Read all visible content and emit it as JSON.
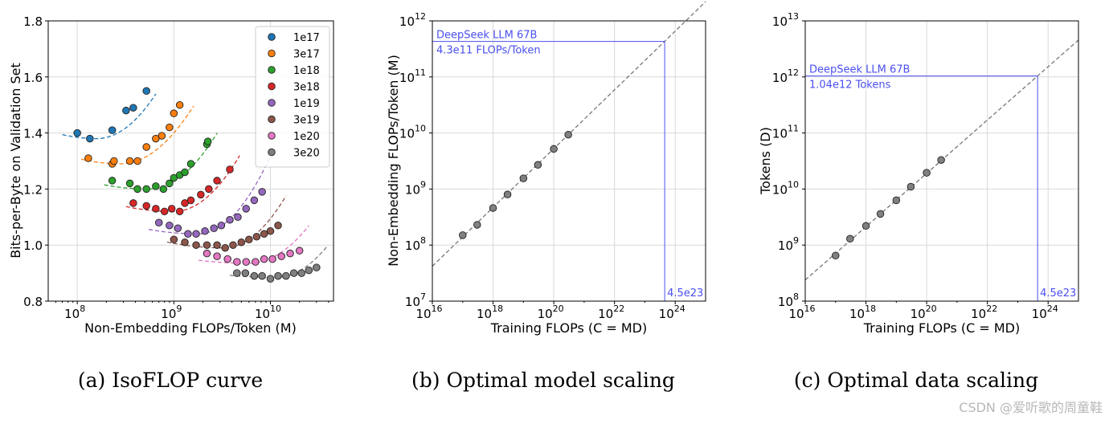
{
  "chart_data": [
    {
      "type": "scatter",
      "title": "",
      "caption": "(a)  IsoFLOP curve",
      "xlabel": "Non-Embedding FLOPs/Token (M)",
      "ylabel": "Bits-per-Byte on Validation Set",
      "xscale": "log",
      "xlim": [
        50000000.0,
        45000000000.0
      ],
      "ylim": [
        0.8,
        1.8
      ],
      "xticks": [
        {
          "value": 100000000.0,
          "base": "10",
          "exp": "8"
        },
        {
          "value": 1000000000.0,
          "base": "10",
          "exp": "9"
        },
        {
          "value": 10000000000.0,
          "base": "10",
          "exp": "10"
        }
      ],
      "yticks": [
        {
          "value": 0.8,
          "label": "0.8"
        },
        {
          "value": 1.0,
          "label": "1.0"
        },
        {
          "value": 1.2,
          "label": "1.2"
        },
        {
          "value": 1.4,
          "label": "1.4"
        },
        {
          "value": 1.6,
          "label": "1.6"
        },
        {
          "value": 1.8,
          "label": "1.8"
        }
      ],
      "grid": true,
      "legend_position": "top-right",
      "series": [
        {
          "name": "1e17",
          "color": "#1f77b4",
          "x": [
            100000000.0,
            135000000.0,
            230000000.0,
            320000000.0,
            380000000.0,
            520000000.0
          ],
          "y": [
            1.4,
            1.38,
            1.41,
            1.48,
            1.49,
            1.55
          ],
          "fit": {
            "x0": 160000000.0,
            "a": 0.11,
            "b": 0.43,
            "y0": 1.38,
            "from": 70000000.0,
            "to": 650000000.0
          }
        },
        {
          "name": "3e17",
          "color": "#ff7f0e",
          "x": [
            130000000.0,
            230000000.0,
            240000000.0,
            350000000.0,
            420000000.0,
            520000000.0,
            650000000.0,
            750000000.0,
            900000000.0,
            1000000000.0,
            1150000000.0
          ],
          "y": [
            1.31,
            1.29,
            1.3,
            1.3,
            1.3,
            1.35,
            1.38,
            1.39,
            1.42,
            1.47,
            1.5
          ],
          "fit": {
            "x0": 280000000.0,
            "a": 0.1,
            "b": 0.36,
            "y0": 1.29,
            "from": 110000000.0,
            "to": 1600000000.0
          }
        },
        {
          "name": "1e18",
          "color": "#2ca02c",
          "x": [
            230000000.0,
            350000000.0,
            420000000.0,
            520000000.0,
            650000000.0,
            780000000.0,
            900000000.0,
            1000000000.0,
            1150000000.0,
            1300000000.0,
            1500000000.0,
            2200000000.0,
            2250000000.0
          ],
          "y": [
            1.23,
            1.22,
            1.2,
            1.2,
            1.21,
            1.2,
            1.22,
            1.24,
            1.25,
            1.26,
            1.29,
            1.36,
            1.37
          ],
          "fit": {
            "x0": 550000000.0,
            "a": 0.07,
            "b": 0.4,
            "y0": 1.2,
            "from": 190000000.0,
            "to": 2800000000.0
          }
        },
        {
          "name": "3e18",
          "color": "#d62728",
          "x": [
            380000000.0,
            520000000.0,
            650000000.0,
            800000000.0,
            950000000.0,
            1150000000.0,
            1300000000.0,
            1500000000.0,
            1900000000.0,
            2300000000.0,
            2800000000.0,
            3800000000.0
          ],
          "y": [
            1.15,
            1.14,
            1.13,
            1.12,
            1.13,
            1.12,
            1.15,
            1.16,
            1.18,
            1.2,
            1.23,
            1.27
          ],
          "fit": {
            "x0": 1000000000.0,
            "a": 0.07,
            "b": 0.43,
            "y0": 1.12,
            "from": 320000000.0,
            "to": 4800000000.0
          }
        },
        {
          "name": "1e19",
          "color": "#9467bd",
          "x": [
            700000000.0,
            900000000.0,
            1100000000.0,
            1400000000.0,
            1700000000.0,
            2100000000.0,
            2600000000.0,
            3100000000.0,
            3800000000.0,
            4600000000.0,
            5600000000.0,
            6800000000.0,
            8200000000.0
          ],
          "y": [
            1.08,
            1.07,
            1.06,
            1.04,
            1.04,
            1.05,
            1.06,
            1.07,
            1.09,
            1.1,
            1.13,
            1.16,
            1.19
          ],
          "fit": {
            "x0": 1800000000.0,
            "a": 0.06,
            "b": 0.5,
            "y0": 1.04,
            "from": 550000000.0,
            "to": 10000000000.0
          }
        },
        {
          "name": "3e19",
          "color": "#8c564b",
          "x": [
            1000000000.0,
            1300000000.0,
            1700000000.0,
            2200000000.0,
            2800000000.0,
            3400000000.0,
            4100000000.0,
            5000000000.0,
            6000000000.0,
            7200000000.0,
            8600000000.0,
            10000000000.0,
            12000000000.0
          ],
          "y": [
            1.02,
            1.01,
            1.0,
            1.0,
            1.0,
            0.99,
            1.0,
            1.01,
            1.02,
            1.03,
            1.04,
            1.05,
            1.07
          ],
          "fit": {
            "x0": 3300000000.0,
            "a": 0.06,
            "b": 0.45,
            "y0": 0.99,
            "from": 850000000.0,
            "to": 14500000000.0
          }
        },
        {
          "name": "1e20",
          "color": "#e377c2",
          "x": [
            2200000000.0,
            2800000000.0,
            3600000000.0,
            4500000000.0,
            5600000000.0,
            7000000000.0,
            8600000000.0,
            10500000000.0,
            13000000000.0,
            16000000000.0,
            20000000000.0
          ],
          "y": [
            0.97,
            0.96,
            0.95,
            0.94,
            0.94,
            0.94,
            0.95,
            0.95,
            0.96,
            0.97,
            0.98
          ],
          "fit": {
            "x0": 6000000000.0,
            "a": 0.04,
            "b": 0.35,
            "y0": 0.935,
            "from": 1800000000.0,
            "to": 25000000000.0
          }
        },
        {
          "name": "3e20",
          "color": "#7f7f7f",
          "x": [
            4500000000.0,
            5500000000.0,
            6800000000.0,
            8200000000.0,
            10000000000.0,
            12000000000.0,
            14500000000.0,
            17500000000.0,
            21000000000.0,
            25000000000.0,
            30000000000.0
          ],
          "y": [
            0.9,
            0.9,
            0.89,
            0.89,
            0.88,
            0.89,
            0.89,
            0.9,
            0.9,
            0.91,
            0.92
          ],
          "fit": {
            "x0": 11500000000.0,
            "a": 0.03,
            "b": 0.4,
            "y0": 0.885,
            "from": 3800000000.0,
            "to": 38000000000.0
          }
        }
      ]
    },
    {
      "type": "scatter",
      "title": "",
      "caption": "(b)  Optimal model scaling",
      "xlabel": "Training FLOPs (C = MD)",
      "ylabel": "Non-Embedding FLOPs/Token (M)",
      "xscale": "log",
      "yscale": "log",
      "xlim": [
        1e+16,
        1e+25
      ],
      "ylim": [
        10000000.0,
        1000000000000.0
      ],
      "xticks": [
        {
          "value": 1e+16,
          "base": "10",
          "exp": "16"
        },
        {
          "value": 1e+18,
          "base": "10",
          "exp": "18"
        },
        {
          "value": 1e+20,
          "base": "10",
          "exp": "20"
        },
        {
          "value": 1e+22,
          "base": "10",
          "exp": "22"
        },
        {
          "value": 1e+24,
          "base": "10",
          "exp": "24"
        }
      ],
      "yticks": [
        {
          "value": 10000000.0,
          "base": "10",
          "exp": "7"
        },
        {
          "value": 100000000.0,
          "base": "10",
          "exp": "8"
        },
        {
          "value": 1000000000.0,
          "base": "10",
          "exp": "9"
        },
        {
          "value": 10000000000.0,
          "base": "10",
          "exp": "10"
        },
        {
          "value": 100000000000.0,
          "base": "10",
          "exp": "11"
        },
        {
          "value": 1000000000000.0,
          "base": "10",
          "exp": "12"
        }
      ],
      "grid": true,
      "points": {
        "x": [
          1e+17,
          3e+17,
          1e+18,
          3e+18,
          1e+19,
          3e+19,
          1e+20,
          3e+20
        ],
        "y": [
          150000000.0,
          230000000.0,
          460000000.0,
          800000000.0,
          1550000000.0,
          2700000000.0,
          5200000000.0,
          9300000000.0
        ],
        "color": "#808080"
      },
      "fit": {
        "coef": 0.1715,
        "exp": 0.5243,
        "color": "#777777"
      },
      "target": {
        "x": 4.5e+23,
        "y": 430000000000.0,
        "color": "#4a4ff0"
      },
      "annotations": {
        "line1": "DeepSeek LLM 67B",
        "line2": "4.3e11 FLOPs/Token",
        "xlabel": "4.5e23"
      }
    },
    {
      "type": "scatter",
      "title": "",
      "caption": "(c)  Optimal data scaling",
      "xlabel": "Training FLOPs (C = MD)",
      "ylabel": "Tokens (D)",
      "xscale": "log",
      "yscale": "log",
      "xlim": [
        1e+16,
        1e+25
      ],
      "ylim": [
        100000000.0,
        10000000000000.0
      ],
      "xticks": [
        {
          "value": 1e+16,
          "base": "10",
          "exp": "16"
        },
        {
          "value": 1e+18,
          "base": "10",
          "exp": "18"
        },
        {
          "value": 1e+20,
          "base": "10",
          "exp": "20"
        },
        {
          "value": 1e+22,
          "base": "10",
          "exp": "22"
        },
        {
          "value": 1e+24,
          "base": "10",
          "exp": "24"
        }
      ],
      "yticks": [
        {
          "value": 100000000.0,
          "base": "10",
          "exp": "8"
        },
        {
          "value": 1000000000.0,
          "base": "10",
          "exp": "9"
        },
        {
          "value": 10000000000.0,
          "base": "10",
          "exp": "10"
        },
        {
          "value": 100000000000.0,
          "base": "10",
          "exp": "11"
        },
        {
          "value": 1000000000000.0,
          "base": "10",
          "exp": "12"
        },
        {
          "value": 10000000000000.0,
          "base": "10",
          "exp": "13"
        }
      ],
      "grid": true,
      "points": {
        "x": [
          1e+17,
          3e+17,
          1e+18,
          3e+18,
          1e+19,
          3e+19,
          1e+20,
          3e+20
        ],
        "y": [
          650000000.0,
          1300000000.0,
          2200000000.0,
          3600000000.0,
          6300000000.0,
          11000000000.0,
          19500000000.0,
          33000000000.0
        ],
        "color": "#808080"
      },
      "fit": {
        "coef": 5.83,
        "exp": 0.4757,
        "color": "#777777"
      },
      "target": {
        "x": 4.5e+23,
        "y": 1040000000000.0,
        "color": "#4a4ff0"
      },
      "annotations": {
        "line1": "DeepSeek LLM 67B",
        "line2": "1.04e12 Tokens",
        "xlabel": "4.5e23"
      }
    }
  ],
  "watermark": "CSDN @爱听歌的周童鞋"
}
